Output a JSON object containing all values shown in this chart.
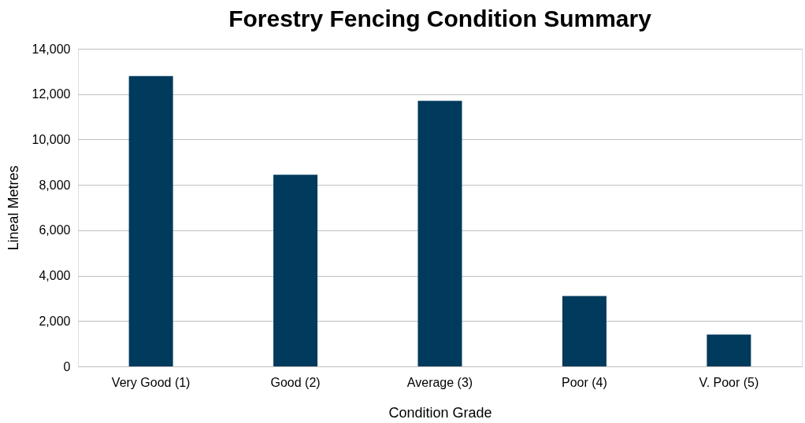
{
  "chart_data": {
    "type": "bar",
    "title": "Forestry Fencing Condition Summary",
    "xlabel": "Condition Grade",
    "ylabel": "Lineal Metres",
    "categories": [
      "Very Good (1)",
      "Good (2)",
      "Average (3)",
      "Poor (4)",
      "V. Poor (5)"
    ],
    "values": [
      12800,
      8450,
      11700,
      3100,
      1400
    ],
    "color": "#003a5c",
    "ylim": [
      0,
      14000
    ],
    "yticks": [
      0,
      {
        "value": 2000,
        "label": "2,000"
      },
      {
        "value": 4000,
        "label": "4,000"
      },
      {
        "value": 6000,
        "label": "6,000"
      },
      {
        "value": 8000,
        "label": "8,000"
      },
      {
        "value": 10000,
        "label": "10,000"
      },
      {
        "value": 12000,
        "label": "12,000"
      },
      {
        "value": 14000,
        "label": "14,000"
      }
    ],
    "grid": "y"
  }
}
